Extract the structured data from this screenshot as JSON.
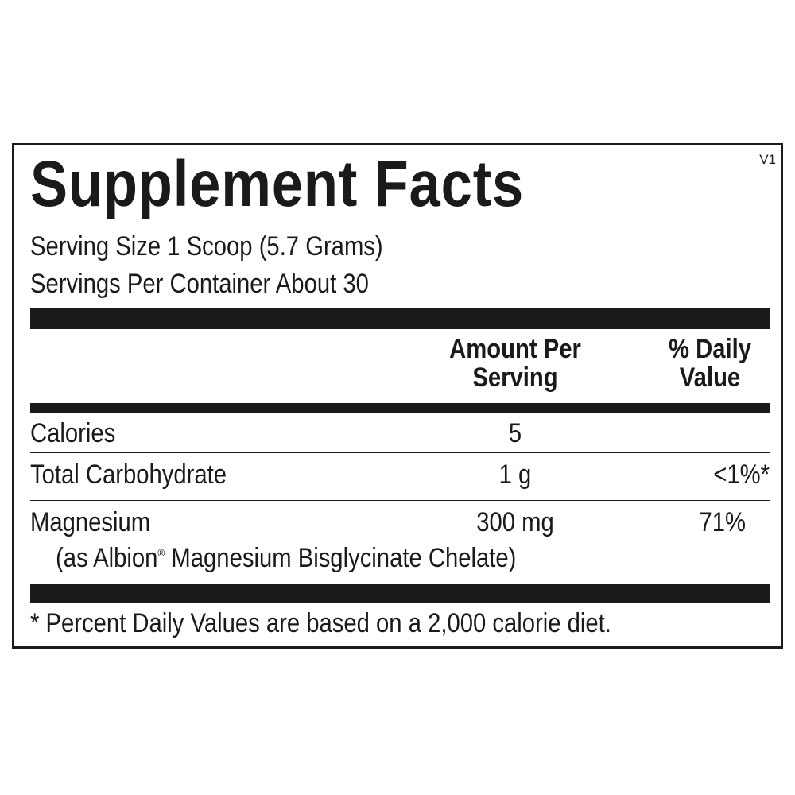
{
  "title": "Supplement Facts",
  "version": "V1",
  "serving_size": "Serving Size 1 Scoop (5.7 Grams)",
  "servings_per_container": "Servings Per Container About 30",
  "header": {
    "amount_line1": "Amount Per",
    "amount_line2": "Serving",
    "dv_line1": "% Daily",
    "dv_line2": "Value"
  },
  "rows": [
    {
      "name": "Calories",
      "amount": "5",
      "dv": ""
    },
    {
      "name": "Total Carbohydrate",
      "amount": "1 g",
      "dv": "<1%*"
    },
    {
      "name": "Magnesium",
      "amount": "300 mg",
      "dv": "71%",
      "sub_prefix": "(as Albion",
      "sub_mark": "®",
      "sub_suffix": " Magnesium Bisglycinate Chelate)"
    }
  ],
  "footnote": "* Percent Daily Values are based on a 2,000 calorie diet."
}
